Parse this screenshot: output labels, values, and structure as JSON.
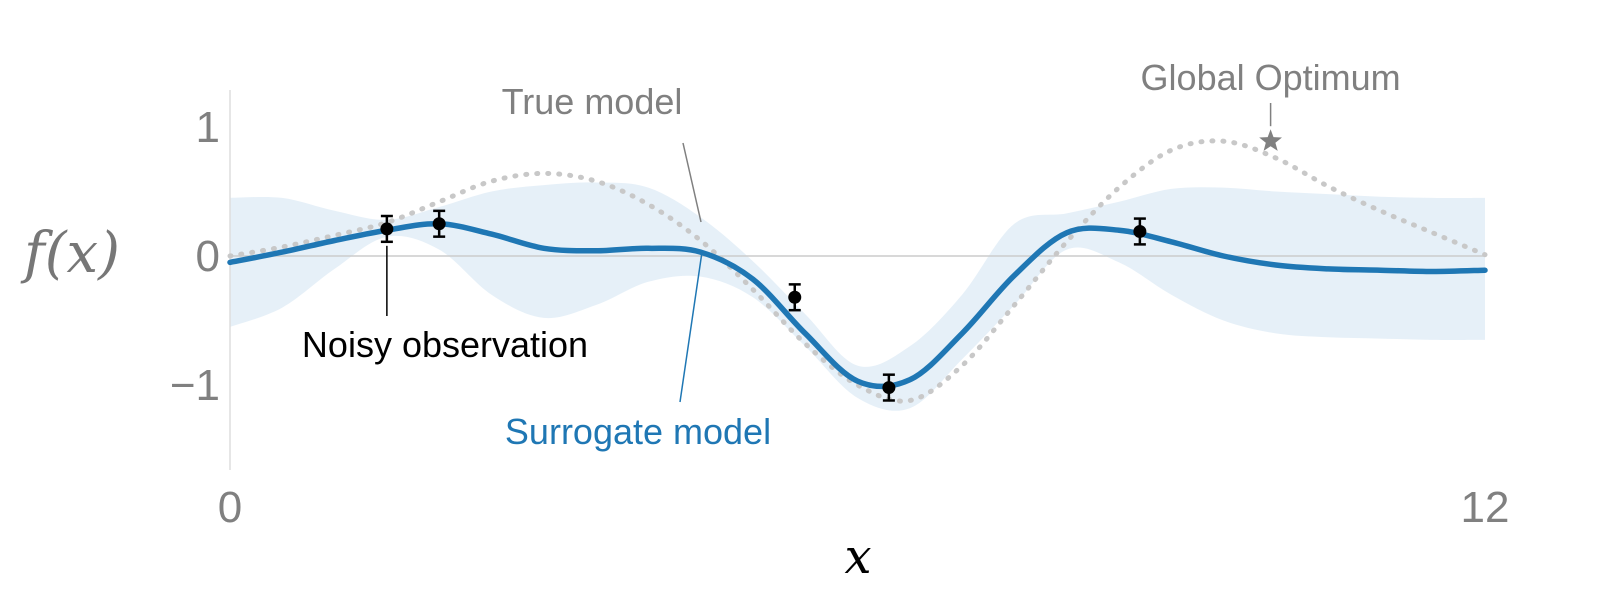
{
  "chart_data": {
    "type": "line",
    "xlabel": "x",
    "ylabel": "f(x)",
    "xlim": [
      0,
      12
    ],
    "ylim": [
      -1.6,
      1.3
    ],
    "xticks": [
      {
        "value": 0,
        "label": "0"
      },
      {
        "value": 12,
        "label": "12"
      }
    ],
    "yticks": [
      {
        "value": 1,
        "label": "1"
      },
      {
        "value": 0,
        "label": "0"
      },
      {
        "value": -1,
        "label": "−1"
      }
    ],
    "grid": false,
    "legend": "none",
    "colors": {
      "surrogate": "#1f77b4",
      "band": "#dce9f5",
      "true_model": "#c8c8c8",
      "annotation_gray": "#808080",
      "observation": "#000000"
    },
    "series": [
      {
        "key": "true",
        "style": "dotted",
        "x": [
          0,
          0.5,
          1,
          1.5,
          2,
          2.5,
          3,
          3.5,
          4,
          4.5,
          5,
          5.5,
          6,
          6.5,
          7,
          7.5,
          8,
          8.5,
          9,
          9.5,
          10,
          10.5,
          11,
          11.5,
          12
        ],
        "y": [
          0.0,
          0.07,
          0.16,
          0.26,
          0.42,
          0.58,
          0.64,
          0.58,
          0.4,
          0.12,
          -0.26,
          -0.68,
          -1.0,
          -1.12,
          -0.85,
          -0.38,
          0.11,
          0.53,
          0.82,
          0.89,
          0.76,
          0.54,
          0.35,
          0.18,
          0.01
        ]
      },
      {
        "key": "surrogate",
        "style": "solid",
        "x": [
          0,
          0.5,
          1,
          1.5,
          2,
          2.5,
          3,
          3.5,
          4,
          4.5,
          5,
          5.5,
          6,
          6.5,
          7,
          7.5,
          8,
          8.5,
          9,
          9.5,
          10,
          10.5,
          11,
          11.5,
          12
        ],
        "y": [
          -0.05,
          0.03,
          0.12,
          0.2,
          0.25,
          0.17,
          0.06,
          0.04,
          0.06,
          0.03,
          -0.18,
          -0.6,
          -0.97,
          -0.96,
          -0.6,
          -0.15,
          0.18,
          0.2,
          0.11,
          0.0,
          -0.07,
          -0.1,
          -0.11,
          -0.12,
          -0.11
        ]
      }
    ],
    "uncertainty_band": {
      "x": [
        0,
        0.5,
        1,
        1.5,
        2,
        2.5,
        3,
        3.5,
        4,
        4.5,
        5,
        5.5,
        6,
        6.5,
        7,
        7.5,
        8,
        8.5,
        9,
        9.5,
        10,
        10.5,
        11,
        11.5,
        12
      ],
      "lower": [
        -0.55,
        -0.4,
        -0.1,
        0.15,
        0.05,
        -0.3,
        -0.48,
        -0.38,
        -0.2,
        -0.16,
        -0.32,
        -0.7,
        -1.1,
        -1.18,
        -0.8,
        -0.38,
        0.05,
        -0.05,
        -0.3,
        -0.5,
        -0.6,
        -0.63,
        -0.64,
        -0.65,
        -0.65
      ],
      "upper": [
        0.45,
        0.45,
        0.35,
        0.28,
        0.38,
        0.5,
        0.55,
        0.57,
        0.53,
        0.3,
        -0.04,
        -0.45,
        -0.85,
        -0.7,
        -0.3,
        0.25,
        0.33,
        0.42,
        0.52,
        0.53,
        0.5,
        0.48,
        0.46,
        0.45,
        0.45
      ]
    },
    "observations": [
      {
        "x": 1.5,
        "y": 0.21,
        "err": 0.1
      },
      {
        "x": 2.0,
        "y": 0.25,
        "err": 0.1
      },
      {
        "x": 5.4,
        "y": -0.32,
        "err": 0.1
      },
      {
        "x": 6.3,
        "y": -1.02,
        "err": 0.1
      },
      {
        "x": 8.7,
        "y": 0.19,
        "err": 0.1
      }
    ],
    "optimum": {
      "x": 9.95,
      "y": 0.89
    },
    "annotations": {
      "true_model": "True model",
      "surrogate_model": "Surrogate model",
      "noisy_observation": "Noisy observation",
      "global_optimum": "Global Optimum"
    }
  }
}
